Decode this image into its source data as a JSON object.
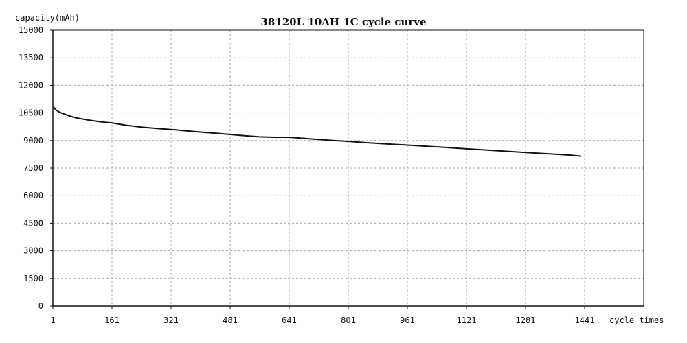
{
  "chart_data": {
    "type": "line",
    "title": "38120L 10AH 1C cycle curve",
    "ylabel": "capacity(mAh)",
    "xlabel": "cycle times",
    "xlim": [
      1,
      1601
    ],
    "ylim": [
      0,
      15000
    ],
    "x_ticks": [
      1,
      161,
      321,
      481,
      641,
      801,
      961,
      1121,
      1281,
      1441
    ],
    "y_ticks": [
      0,
      1500,
      3000,
      4500,
      6000,
      7500,
      9000,
      10500,
      12000,
      13500,
      15000
    ],
    "grid": true,
    "series": [
      {
        "color": "#111111",
        "x": [
          1,
          10,
          20,
          40,
          60,
          80,
          100,
          130,
          161,
          200,
          240,
          280,
          321,
          360,
          400,
          440,
          481,
          520,
          560,
          600,
          641,
          680,
          720,
          760,
          801,
          850,
          900,
          961,
          1000,
          1050,
          1121,
          1200,
          1281,
          1350,
          1400,
          1431
        ],
        "y": [
          10850,
          10650,
          10530,
          10380,
          10250,
          10170,
          10100,
          10020,
          9950,
          9830,
          9730,
          9660,
          9600,
          9530,
          9460,
          9400,
          9330,
          9260,
          9200,
          9180,
          9180,
          9120,
          9060,
          9000,
          8950,
          8880,
          8820,
          8750,
          8700,
          8640,
          8550,
          8450,
          8350,
          8270,
          8210,
          8150
        ]
      }
    ]
  }
}
